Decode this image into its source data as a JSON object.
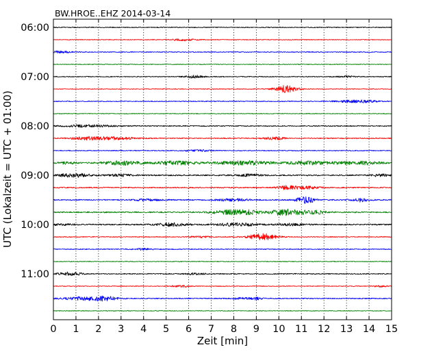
{
  "chart_data": {
    "type": "line",
    "title": "BW.HROE..EHZ 2014-03-14",
    "xlabel": "Zeit  [min]",
    "ylabel": "UTC (Lokalzeit = UTC + 01:00)",
    "xlim": [
      0,
      15
    ],
    "x_ticks": [
      "0",
      "1",
      "2",
      "3",
      "4",
      "5",
      "6",
      "7",
      "8",
      "9",
      "10",
      "11",
      "12",
      "13",
      "14",
      "15"
    ],
    "y_ticks": [
      "06:00",
      "07:00",
      "08:00",
      "09:00",
      "10:00",
      "11:00"
    ],
    "grid": "vertical dotted",
    "colors": {
      "black": "#000000",
      "red": "#ff0000",
      "blue": "#0000ff",
      "green": "#008000"
    },
    "trace_start_minutes": 360,
    "trace_interval_minutes": 15,
    "traces": [
      {
        "color": "black",
        "level": 0.6,
        "bursts": []
      },
      {
        "color": "red",
        "level": 0.5,
        "bursts": [
          {
            "t": 5.8,
            "w": 0.4,
            "a": 1.4
          }
        ]
      },
      {
        "color": "blue",
        "level": 0.6,
        "bursts": [
          {
            "t": 0.3,
            "w": 0.3,
            "a": 1.6
          }
        ]
      },
      {
        "color": "green",
        "level": 0.5,
        "bursts": []
      },
      {
        "color": "black",
        "level": 0.6,
        "bursts": [
          {
            "t": 6.2,
            "w": 0.3,
            "a": 2.0
          },
          {
            "t": 13.0,
            "w": 0.3,
            "a": 1.0
          }
        ]
      },
      {
        "color": "red",
        "level": 0.5,
        "bursts": [
          {
            "t": 10.3,
            "w": 0.35,
            "a": 5.0
          }
        ]
      },
      {
        "color": "blue",
        "level": 0.6,
        "bursts": [
          {
            "t": 13.2,
            "w": 0.5,
            "a": 1.5
          },
          {
            "t": 14.0,
            "w": 0.3,
            "a": 1.2
          }
        ]
      },
      {
        "color": "green",
        "level": 0.5,
        "bursts": []
      },
      {
        "color": "black",
        "level": 0.7,
        "bursts": [
          {
            "t": 1.6,
            "w": 0.8,
            "a": 1.5
          }
        ]
      },
      {
        "color": "red",
        "level": 0.7,
        "bursts": [
          {
            "t": 1.5,
            "w": 0.5,
            "a": 2.2
          },
          {
            "t": 2.8,
            "w": 0.6,
            "a": 2.0
          },
          {
            "t": 9.8,
            "w": 0.3,
            "a": 2.2
          }
        ]
      },
      {
        "color": "blue",
        "level": 0.6,
        "bursts": [
          {
            "t": 6.4,
            "w": 0.4,
            "a": 1.2
          }
        ]
      },
      {
        "color": "green",
        "level": 1.0,
        "bursts": [
          {
            "t": 0.6,
            "w": 0.3,
            "a": 1.5
          },
          {
            "t": 3.1,
            "w": 0.6,
            "a": 2.6
          },
          {
            "t": 5.5,
            "w": 0.6,
            "a": 2.6
          },
          {
            "t": 8.5,
            "w": 0.9,
            "a": 2.6
          },
          {
            "t": 11.3,
            "w": 0.6,
            "a": 2.4
          },
          {
            "t": 13.0,
            "w": 0.5,
            "a": 1.6
          },
          {
            "t": 14.0,
            "w": 0.4,
            "a": 1.8
          }
        ]
      },
      {
        "color": "black",
        "level": 0.9,
        "bursts": [
          {
            "t": 0.9,
            "w": 0.5,
            "a": 2.6
          },
          {
            "t": 3.0,
            "w": 0.4,
            "a": 1.4
          },
          {
            "t": 8.7,
            "w": 0.4,
            "a": 1.4
          },
          {
            "t": 14.5,
            "w": 0.3,
            "a": 1.6
          }
        ]
      },
      {
        "color": "red",
        "level": 0.8,
        "bursts": [
          {
            "t": 10.3,
            "w": 0.3,
            "a": 2.4
          },
          {
            "t": 11.2,
            "w": 0.4,
            "a": 2.0
          }
        ]
      },
      {
        "color": "blue",
        "level": 0.8,
        "bursts": [
          {
            "t": 8.0,
            "w": 0.5,
            "a": 1.6
          },
          {
            "t": 11.2,
            "w": 0.3,
            "a": 4.6
          },
          {
            "t": 13.6,
            "w": 0.3,
            "a": 2.6
          },
          {
            "t": 4.2,
            "w": 0.4,
            "a": 1.3
          }
        ]
      },
      {
        "color": "green",
        "level": 0.9,
        "bursts": [
          {
            "t": 7.9,
            "w": 0.6,
            "a": 2.8
          },
          {
            "t": 8.6,
            "w": 0.4,
            "a": 2.0
          },
          {
            "t": 10.1,
            "w": 0.35,
            "a": 4.0
          },
          {
            "t": 11.0,
            "w": 0.5,
            "a": 2.6
          },
          {
            "t": 11.8,
            "w": 0.3,
            "a": 1.5
          }
        ]
      },
      {
        "color": "black",
        "level": 0.9,
        "bursts": [
          {
            "t": 5.2,
            "w": 0.5,
            "a": 2.2
          },
          {
            "t": 8.2,
            "w": 0.7,
            "a": 2.0
          },
          {
            "t": 10.6,
            "w": 0.4,
            "a": 1.4
          },
          {
            "t": 0.4,
            "w": 0.3,
            "a": 1.4
          }
        ]
      },
      {
        "color": "red",
        "level": 0.6,
        "bursts": [
          {
            "t": 6.5,
            "w": 0.3,
            "a": 1.2
          },
          {
            "t": 9.3,
            "w": 0.45,
            "a": 4.6
          }
        ]
      },
      {
        "color": "blue",
        "level": 0.6,
        "bursts": [
          {
            "t": 4.0,
            "w": 0.3,
            "a": 1.1
          }
        ]
      },
      {
        "color": "green",
        "level": 0.5,
        "bursts": []
      },
      {
        "color": "black",
        "level": 0.7,
        "bursts": [
          {
            "t": 0.7,
            "w": 0.35,
            "a": 2.6
          },
          {
            "t": 6.3,
            "w": 0.3,
            "a": 1.2
          }
        ]
      },
      {
        "color": "red",
        "level": 0.5,
        "bursts": [
          {
            "t": 5.6,
            "w": 0.3,
            "a": 1.4
          },
          {
            "t": 14.5,
            "w": 0.2,
            "a": 1.2
          }
        ]
      },
      {
        "color": "blue",
        "level": 0.7,
        "bursts": [
          {
            "t": 1.3,
            "w": 0.6,
            "a": 2.2
          },
          {
            "t": 2.3,
            "w": 0.4,
            "a": 2.8
          },
          {
            "t": 8.3,
            "w": 0.3,
            "a": 1.3
          },
          {
            "t": 9.0,
            "w": 0.2,
            "a": 1.6
          }
        ]
      },
      {
        "color": "green",
        "level": 0.5,
        "bursts": []
      }
    ]
  }
}
